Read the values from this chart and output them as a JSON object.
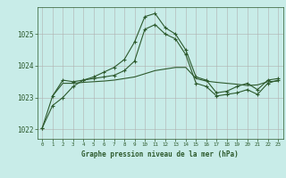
{
  "title": "Graphe pression niveau de la mer (hPa)",
  "background_color": "#c8ece8",
  "grid_color": "#b0b0b0",
  "line_color": "#2d5a2d",
  "marker_color": "#2d5a2d",
  "xlim": [
    -0.5,
    23.5
  ],
  "ylim": [
    1021.7,
    1025.85
  ],
  "yticks": [
    1022,
    1023,
    1024,
    1025
  ],
  "xticks": [
    0,
    1,
    2,
    3,
    4,
    5,
    6,
    7,
    8,
    9,
    10,
    11,
    12,
    13,
    14,
    15,
    16,
    17,
    18,
    19,
    20,
    21,
    22,
    23
  ],
  "series1_x": [
    0,
    1,
    2,
    3,
    4,
    5,
    6,
    7,
    8,
    9,
    10,
    11,
    12,
    13,
    14,
    15,
    16,
    17,
    18,
    19,
    20,
    21,
    22,
    23
  ],
  "series1_y": [
    1022.05,
    1022.75,
    1023.0,
    1023.35,
    1023.55,
    1023.65,
    1023.8,
    1023.95,
    1024.2,
    1024.75,
    1025.55,
    1025.65,
    1025.2,
    1025.0,
    1024.5,
    1023.65,
    1023.55,
    1023.15,
    1023.2,
    1023.35,
    1023.45,
    1023.25,
    1023.55,
    1023.6
  ],
  "series2_x": [
    0,
    1,
    2,
    3,
    4,
    5,
    6,
    7,
    8,
    9,
    10,
    11,
    12,
    13,
    14,
    15,
    16,
    17,
    18,
    19,
    20,
    21,
    22,
    23
  ],
  "series2_y": [
    1022.05,
    1023.05,
    1023.55,
    1023.5,
    1023.55,
    1023.6,
    1023.65,
    1023.7,
    1023.85,
    1024.15,
    1025.15,
    1025.3,
    1025.0,
    1024.85,
    1024.35,
    1023.45,
    1023.35,
    1023.05,
    1023.1,
    1023.15,
    1023.25,
    1023.1,
    1023.45,
    1023.55
  ],
  "series3_x": [
    1,
    2,
    3,
    4,
    5,
    6,
    7,
    8,
    9,
    10,
    11,
    12,
    13,
    14,
    15,
    16,
    17,
    18,
    19,
    20,
    21,
    22,
    23
  ],
  "series3_y": [
    1023.05,
    1023.45,
    1023.45,
    1023.48,
    1023.5,
    1023.52,
    1023.55,
    1023.6,
    1023.65,
    1023.75,
    1023.85,
    1023.9,
    1023.95,
    1023.95,
    1023.6,
    1023.52,
    1023.48,
    1023.45,
    1023.42,
    1023.38,
    1023.4,
    1023.5,
    1023.52
  ]
}
